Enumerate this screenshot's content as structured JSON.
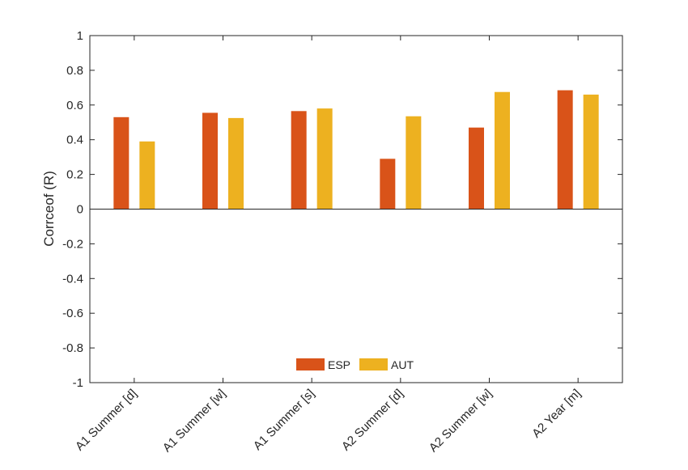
{
  "chart_data": {
    "type": "bar",
    "ylabel": "Corrceof (R)",
    "xlabel": "",
    "ylim": [
      -1,
      1
    ],
    "yticks": [
      1,
      0.8,
      0.6,
      0.4,
      0.2,
      0,
      -0.2,
      -0.4,
      -0.6,
      -0.8,
      -1
    ],
    "categories": [
      "A1 Summer [d]",
      "A1 Summer [w]",
      "A1 Summer [s]",
      "A2 Summer [d]",
      "A2 Summer [w]",
      "A2 Year [m]"
    ],
    "series": [
      {
        "name": "ESP",
        "values": [
          0.53,
          0.555,
          0.565,
          0.29,
          0.47,
          0.685
        ],
        "color": "#D95319"
      },
      {
        "name": "AUT",
        "values": [
          0.39,
          0.525,
          0.58,
          0.535,
          0.675,
          0.66
        ],
        "color": "#EDB120"
      }
    ],
    "legend_position": "bottom-center",
    "grid": false
  }
}
